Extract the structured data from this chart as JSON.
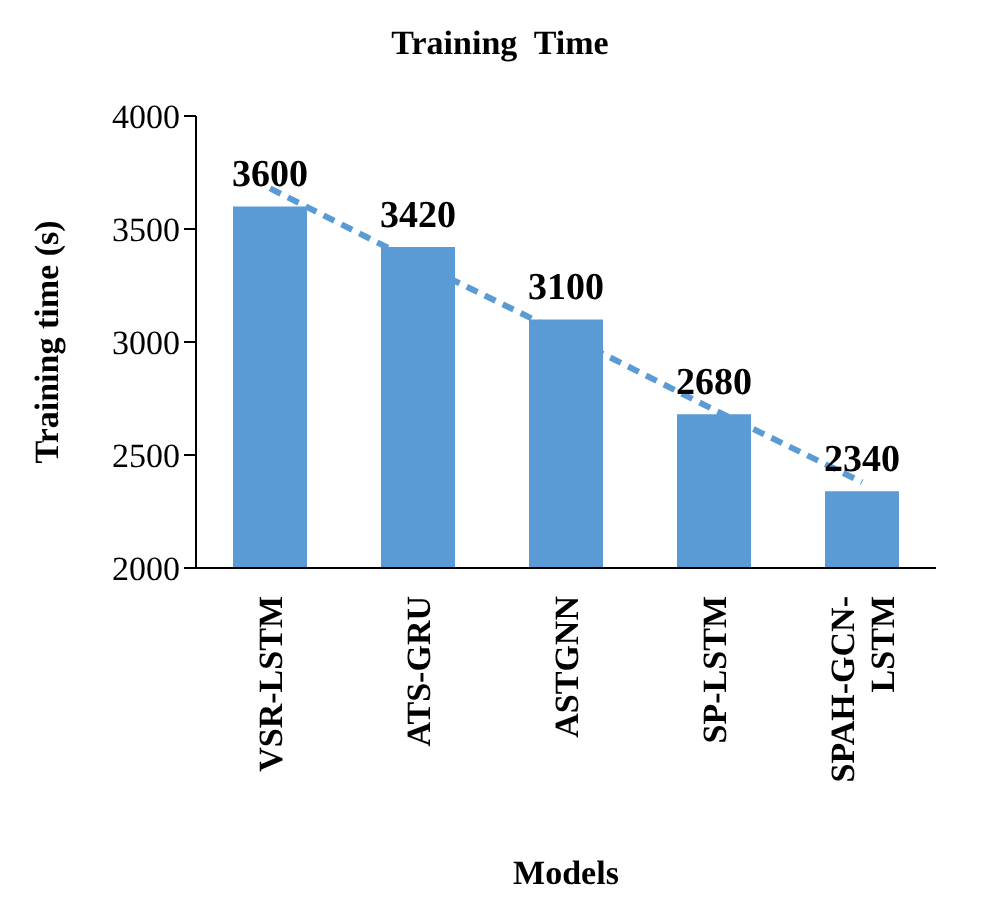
{
  "chart_data": {
    "type": "bar",
    "title": "Training  Time",
    "xlabel": "Models",
    "ylabel": "Training time (s)",
    "categories": [
      "VSR-LSTM",
      "ATS-GRU",
      "ASTGNN",
      "SP-LSTM",
      "SPAH-GCN-LSTM"
    ],
    "series": [
      {
        "color": "#5b9bd5",
        "values": [
          3600,
          3420,
          3100,
          2680,
          2340
        ],
        "value_labels": [
          "3600",
          "3420",
          "3100",
          "2680",
          "2340"
        ]
      },
      {
        "type": "line",
        "color": "#5b9bd5",
        "line_style": "dashed",
        "values": [
          3680,
          3350,
          3030,
          2700,
          2380
        ]
      }
    ],
    "ylim": [
      2000,
      4000
    ],
    "yticks": [
      2000,
      2500,
      3000,
      3500,
      4000
    ]
  }
}
